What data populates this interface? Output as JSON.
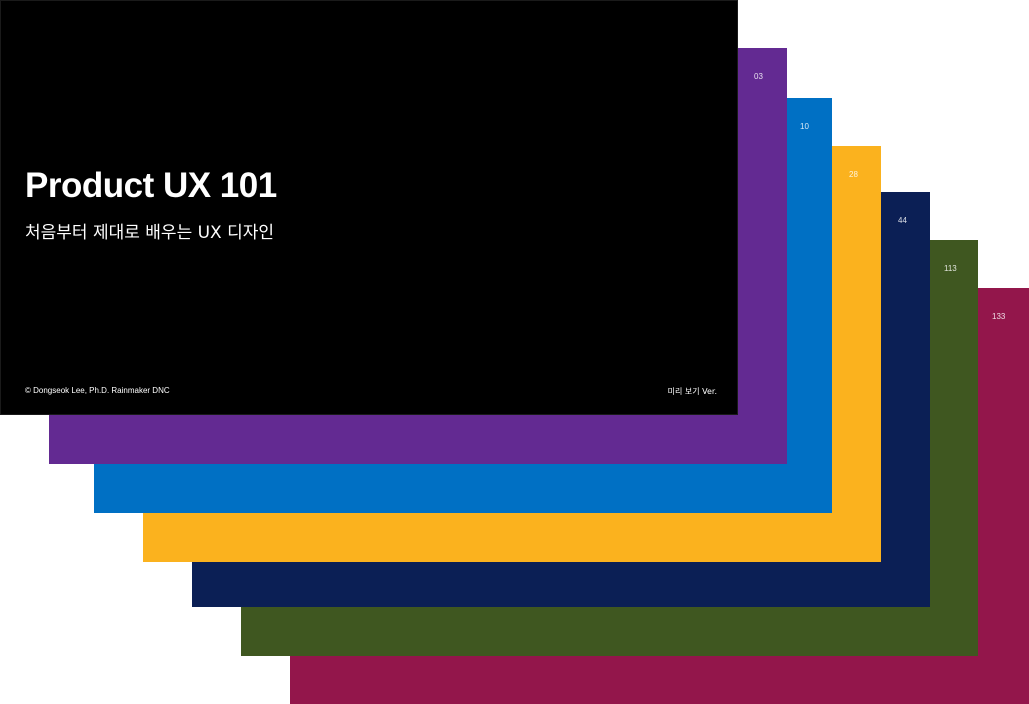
{
  "cover": {
    "title": "Product UX 101",
    "subtitle": "처음부터 제대로 배우는 UX 디자인",
    "credit": "© Dongseok Lee, Ph.D. Rainmaker DNC",
    "version": "미리 보기 Ver.",
    "color": "#000000"
  },
  "stack": [
    {
      "page": "03",
      "color": "#632a92"
    },
    {
      "page": "10",
      "color": "#0070c4"
    },
    {
      "page": "28",
      "color": "#fbb21e"
    },
    {
      "page": "44",
      "color": "#0b1f55"
    },
    {
      "page": "113",
      "color": "#3f5720"
    },
    {
      "page": "133",
      "color": "#93164b"
    }
  ]
}
